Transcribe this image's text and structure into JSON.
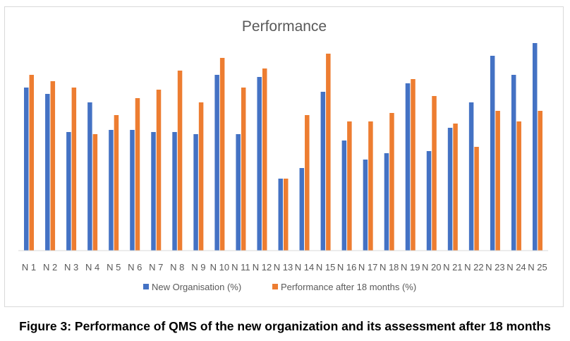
{
  "caption": "Figure 3: Performance of QMS of the new organization and its assessment after 18 months",
  "colors": {
    "series1": "#4472c4",
    "series2": "#ed7d31",
    "axis": "#d9d9d9",
    "text": "#595959"
  },
  "chart_data": {
    "type": "bar",
    "title": "Performance",
    "xlabel": "",
    "ylabel": "",
    "ylim": [
      0,
      100
    ],
    "grid": false,
    "legend_position": "bottom",
    "categories": [
      "N 1",
      "N 2",
      "N 3",
      "N 4",
      "N 5",
      "N 6",
      "N 7",
      "N 8",
      "N 9",
      "N 10",
      "N 11",
      "N 12",
      "N 13",
      "N 14",
      "N 15",
      "N 16",
      "N 17",
      "N 18",
      "N 19",
      "N 20",
      "N 21",
      "N 22",
      "N 23",
      "N 24",
      "N 25"
    ],
    "series": [
      {
        "name": "New Organisation (%)",
        "values": [
          77,
          74,
          56,
          70,
          57,
          57,
          56,
          56,
          55,
          83,
          55,
          82,
          34,
          39,
          75,
          52,
          43,
          46,
          79,
          47,
          58,
          70,
          92,
          83,
          98
        ]
      },
      {
        "name": "Performance after 18 months (%)",
        "values": [
          83,
          80,
          77,
          55,
          64,
          72,
          76,
          85,
          70,
          91,
          77,
          86,
          34,
          64,
          93,
          61,
          61,
          65,
          81,
          73,
          60,
          49,
          66,
          61,
          66
        ]
      }
    ]
  }
}
